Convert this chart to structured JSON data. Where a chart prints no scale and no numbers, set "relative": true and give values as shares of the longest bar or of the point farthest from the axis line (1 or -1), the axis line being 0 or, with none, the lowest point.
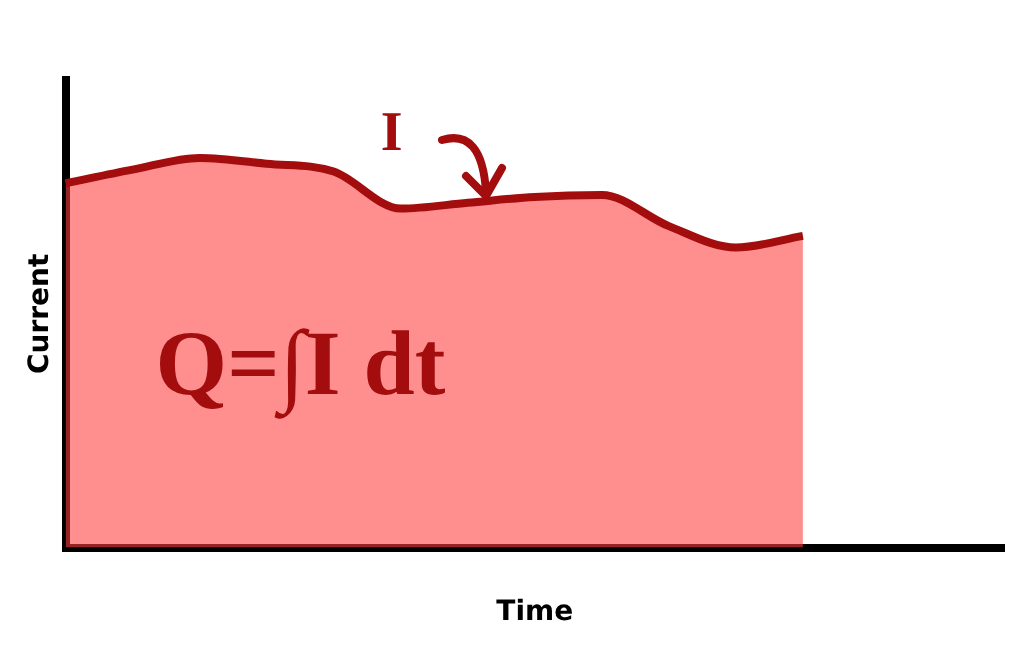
{
  "chart_data": {
    "type": "area",
    "relative": true,
    "xlabel": "Time",
    "ylabel": "Current",
    "categories": [
      null,
      null,
      null,
      null,
      null,
      null,
      null,
      null,
      null,
      null,
      null,
      null,
      null,
      null,
      null
    ],
    "series": [
      {
        "color": "#a30d0d",
        "values": [
          0.935,
          0.97,
          1,
          0.985,
          0.965,
          0.87,
          0.885,
          0.9,
          0.905,
          0.825,
          0.77,
          0.8,
          null,
          null,
          null
        ]
      }
    ],
    "annotations": [
      "I",
      "Q=∫I dt"
    ],
    "grid": false,
    "legend": false
  }
}
